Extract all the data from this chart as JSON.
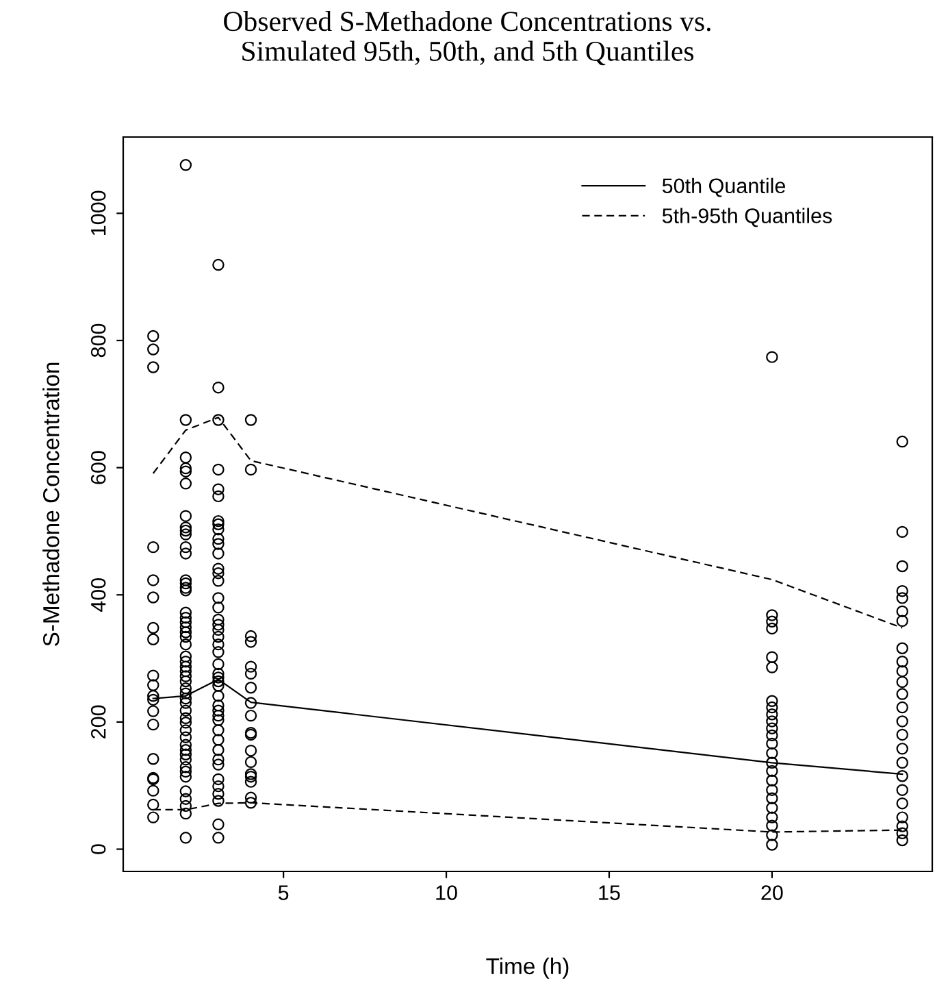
{
  "chart_data": {
    "type": "scatter",
    "title": "Observed S-Methadone Concentrations vs.\nSimulated 95th, 50th, and 5th Quantiles",
    "xlabel": "Time (h)",
    "ylabel": "S-Methadone Concentration",
    "xlim": [
      0.08,
      24.92
    ],
    "xticks": [
      5,
      10,
      15,
      20
    ],
    "ylim": [
      -35,
      1120
    ],
    "yticks": [
      0,
      200,
      400,
      600,
      800,
      1000
    ],
    "grid": false,
    "legend": "top right",
    "series": [
      {
        "marker": "circle",
        "color": "#000000",
        "x": [
          1,
          1,
          1,
          1,
          1,
          1,
          1,
          1,
          1,
          1,
          1,
          1,
          1,
          1,
          1,
          1,
          1,
          1,
          1,
          1,
          2,
          2,
          2,
          2,
          2,
          2,
          2,
          2,
          2,
          2,
          2,
          2,
          2,
          2,
          2,
          2,
          2,
          2,
          2,
          2,
          2,
          2,
          2,
          2,
          2,
          2,
          2,
          2,
          2,
          2,
          2,
          2,
          2,
          2,
          2,
          2,
          2,
          2,
          2,
          2,
          2,
          2,
          2,
          2,
          2,
          2,
          2,
          2,
          2,
          2,
          3,
          3,
          3,
          3,
          3,
          3,
          3,
          3,
          3,
          3,
          3,
          3,
          3,
          3,
          3,
          3,
          3,
          3,
          3,
          3,
          3,
          3,
          3,
          3,
          3,
          3,
          3,
          3,
          3,
          3,
          3,
          3,
          3,
          3,
          3,
          3,
          3,
          3,
          3,
          3,
          3,
          3,
          3,
          3,
          4,
          4,
          4,
          4,
          4,
          4,
          4,
          4,
          4,
          4,
          4,
          4,
          4,
          4,
          4,
          4,
          4,
          4,
          20,
          20,
          20,
          20,
          20,
          20,
          20,
          20,
          20,
          20,
          20,
          20,
          20,
          20,
          20,
          20,
          20,
          20,
          20,
          20,
          20,
          20,
          20,
          20,
          24,
          24,
          24,
          24,
          24,
          24,
          24,
          24,
          24,
          24,
          24,
          24,
          24,
          24,
          24,
          24,
          24,
          24,
          24,
          24,
          24,
          24,
          24,
          24
        ],
        "values": [
          807,
          786,
          758,
          475,
          423,
          396,
          348,
          330,
          273,
          258,
          241,
          235,
          217,
          196,
          142,
          112,
          110,
          92,
          70,
          50,
          1076,
          675,
          616,
          599,
          594,
          575,
          524,
          506,
          501,
          495,
          475,
          465,
          423,
          418,
          411,
          407,
          372,
          364,
          357,
          349,
          341,
          334,
          322,
          303,
          295,
          287,
          280,
          272,
          264,
          253,
          245,
          237,
          230,
          218,
          206,
          199,
          187,
          176,
          164,
          156,
          149,
          141,
          129,
          122,
          114,
          91,
          79,
          68,
          56,
          18,
          919,
          726,
          675,
          597,
          566,
          555,
          516,
          511,
          503,
          488,
          480,
          465,
          441,
          434,
          422,
          395,
          380,
          361,
          353,
          345,
          334,
          322,
          310,
          291,
          276,
          270,
          264,
          257,
          241,
          226,
          218,
          210,
          203,
          187,
          172,
          156,
          141,
          133,
          110,
          99,
          87,
          76,
          39,
          18,
          675,
          597,
          335,
          326,
          287,
          276,
          254,
          230,
          210,
          183,
          180,
          155,
          137,
          118,
          114,
          106,
          81,
          73,
          774,
          368,
          358,
          347,
          302,
          286,
          233,
          223,
          212,
          201,
          190,
          179,
          166,
          151,
          136,
          123,
          108,
          93,
          80,
          65,
          50,
          37,
          22,
          7,
          641,
          499,
          445,
          406,
          395,
          374,
          359,
          316,
          295,
          280,
          263,
          244,
          223,
          201,
          180,
          158,
          136,
          115,
          93,
          72,
          50,
          36,
          25,
          14
        ]
      },
      {
        "type": "line",
        "name": "50th Quantile",
        "color": "#000000",
        "line_style": "solid",
        "x": [
          1,
          2,
          3,
          4,
          20,
          24
        ],
        "values": [
          237,
          241,
          267,
          231,
          136,
          118
        ]
      },
      {
        "type": "line",
        "name": "5th-95th Quantiles",
        "color": "#000000",
        "line_style": "dashed",
        "x": [
          1,
          2,
          3,
          4,
          20,
          24
        ],
        "values": [
          591,
          659,
          679,
          611,
          424,
          348
        ]
      },
      {
        "type": "line",
        "color": "#000000",
        "line_style": "dashed",
        "x": [
          1,
          2,
          3,
          4,
          20,
          24
        ],
        "values": [
          62,
          62,
          72,
          73,
          27,
          30
        ]
      }
    ]
  }
}
